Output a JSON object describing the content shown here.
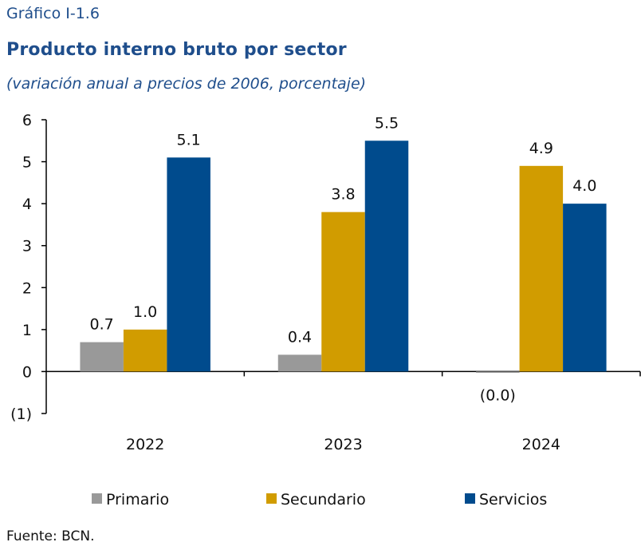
{
  "header": {
    "kicker": "Gráfico I-1.6",
    "title": "Producto interno bruto por sector",
    "subtitle": "(variación anual a precios de 2006, porcentaje)"
  },
  "source": "Fuente: BCN.",
  "chart_data": {
    "type": "bar",
    "title": "Producto interno bruto por sector",
    "subtitle": "(variación anual a precios de 2006, porcentaje)",
    "xlabel": "",
    "ylabel": "",
    "categories": [
      "2022",
      "2023",
      "2024"
    ],
    "ylim": [
      -1,
      6
    ],
    "yticks": [
      6,
      5,
      4,
      3,
      2,
      1,
      0,
      -1
    ],
    "ytick_labels": [
      "6",
      "5",
      "4",
      "3",
      "2",
      "1",
      "0",
      "(1)"
    ],
    "grid": false,
    "legend_position": "bottom",
    "series": [
      {
        "name": "Primario",
        "color": "#999999",
        "values": [
          0.7,
          0.4,
          -0.03
        ],
        "labels": [
          "0.7",
          "0.4",
          "(0.0)"
        ]
      },
      {
        "name": "Secundario",
        "color": "#d19c00",
        "values": [
          1.0,
          3.8,
          4.9
        ],
        "labels": [
          "1.0",
          "3.8",
          "4.9"
        ]
      },
      {
        "name": "Servicios",
        "color": "#004b8d",
        "values": [
          5.1,
          5.5,
          4.0
        ],
        "labels": [
          "5.1",
          "5.5",
          "4.0"
        ]
      }
    ]
  }
}
